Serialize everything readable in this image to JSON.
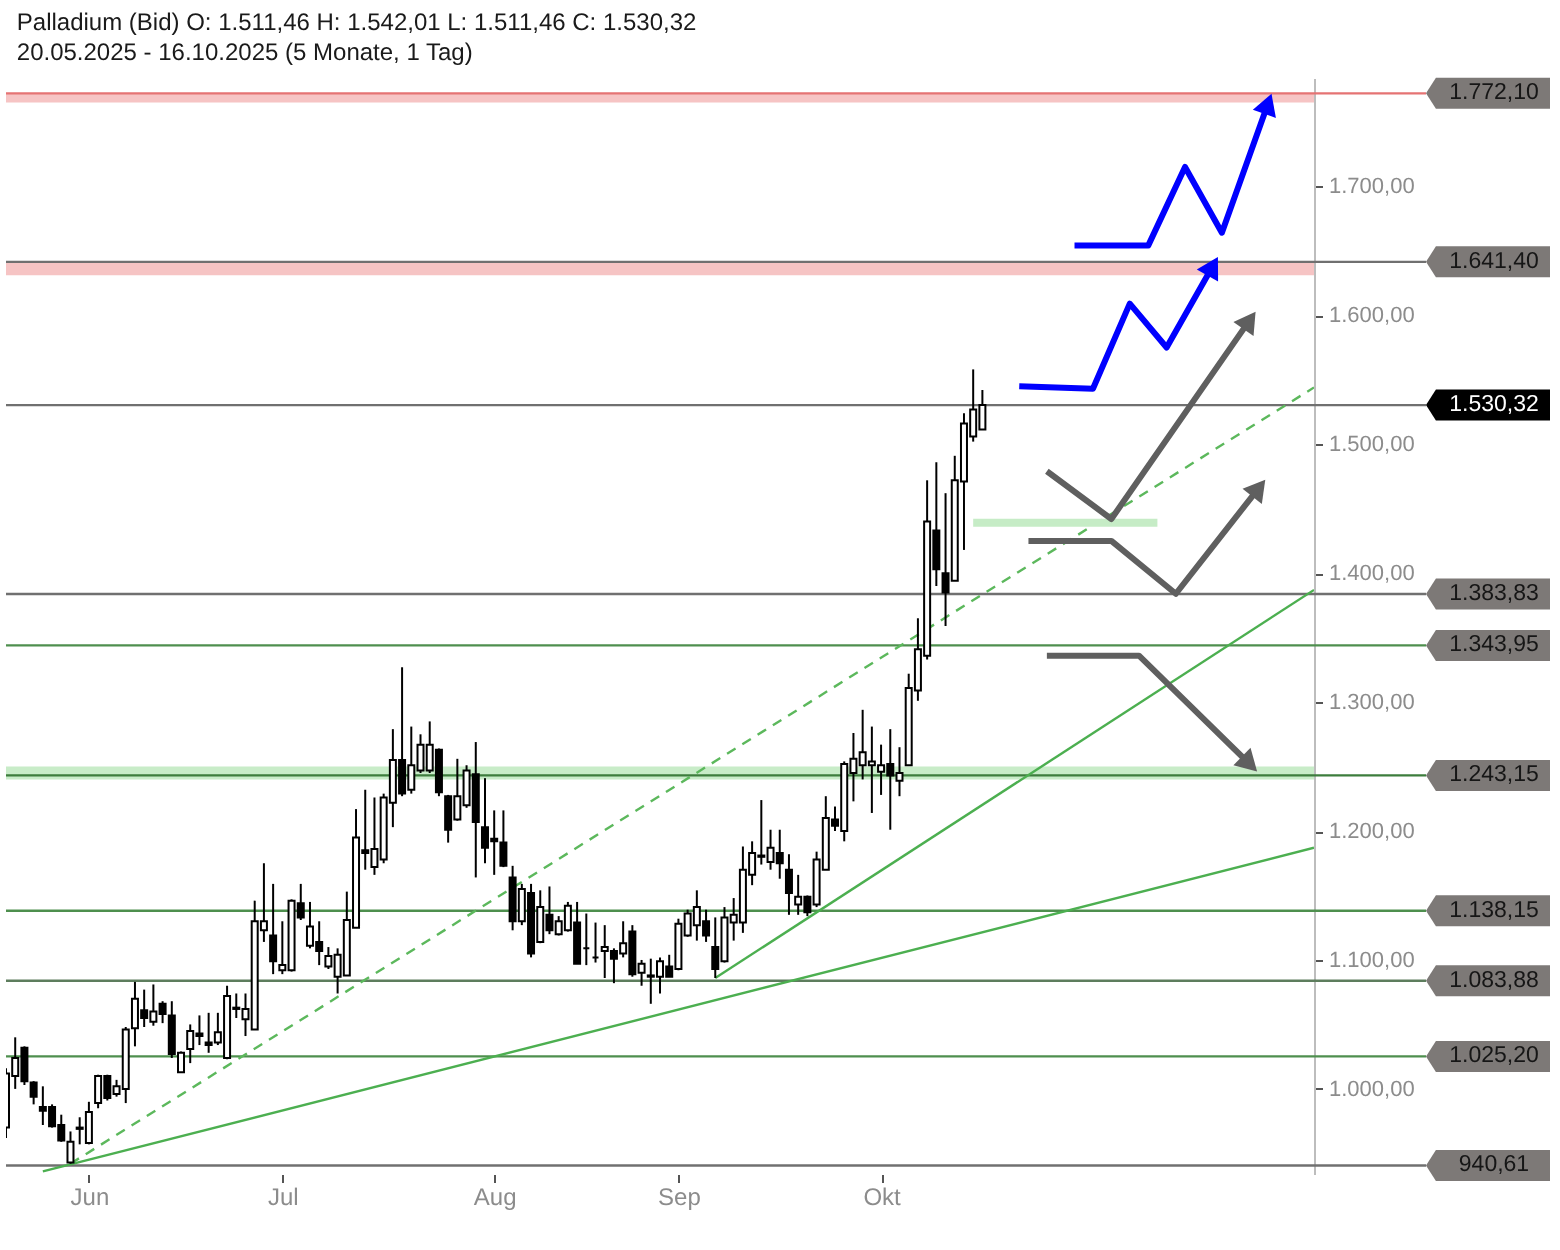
{
  "chart_data": {
    "type": "candlestick",
    "title": "Palladium (Bid) O: 1.511,46 H: 1.542,01 L: 1.511,46 C: 1.530,32",
    "subtitle": "20.05.2025 - 16.10.2025 (5 Monate, 1 Tag)",
    "categories": [
      null,
      null,
      null,
      null,
      null,
      null,
      null,
      null,
      null,
      "Jun",
      null,
      null,
      null,
      null,
      null,
      null,
      null,
      null,
      null,
      null,
      null,
      null,
      null,
      null,
      null,
      null,
      null,
      null,
      null,
      null,
      "Jul",
      null,
      null,
      null,
      null,
      null,
      null,
      null,
      null,
      null,
      null,
      null,
      null,
      null,
      null,
      null,
      null,
      null,
      null,
      null,
      null,
      null,
      null,
      "Aug",
      null,
      null,
      null,
      null,
      null,
      null,
      null,
      null,
      null,
      null,
      null,
      null,
      null,
      null,
      null,
      null,
      null,
      null,
      null,
      "Sep",
      null,
      null,
      null,
      null,
      null,
      null,
      null,
      null,
      null,
      null,
      null,
      null,
      null,
      null,
      null,
      null,
      null,
      null,
      null,
      null,
      null,
      "Okt",
      null,
      null,
      null,
      null,
      null,
      null,
      null,
      null,
      null,
      null,
      null,
      null,
      null,
      null,
      null,
      null,
      null,
      null,
      null,
      null,
      null,
      null,
      null,
      null,
      null,
      null,
      null,
      null,
      null,
      null,
      null,
      null,
      null,
      null,
      null,
      null,
      null,
      null,
      null,
      null,
      null,
      null,
      null,
      null,
      null,
      null,
      null
    ],
    "ohlc": [
      [
        970,
        1016,
        962,
        1012
      ],
      [
        1010,
        1040,
        1000,
        1024
      ],
      [
        1032,
        1033,
        1003,
        1006
      ],
      [
        1005,
        1006,
        988,
        994
      ],
      [
        986,
        1002,
        972,
        983
      ],
      [
        986,
        988,
        970,
        971
      ],
      [
        972,
        980,
        959,
        960
      ],
      [
        943,
        967,
        942,
        959
      ],
      [
        970,
        978,
        957,
        969
      ],
      [
        958,
        990,
        957,
        982
      ],
      [
        989,
        1011,
        985,
        1010
      ],
      [
        1010,
        1011,
        991,
        993
      ],
      [
        996,
        1007,
        994,
        1002
      ],
      [
        1000,
        1048,
        989,
        1046
      ],
      [
        1047,
        1083,
        1033,
        1070
      ],
      [
        1061,
        1077,
        1048,
        1055
      ],
      [
        1052,
        1081,
        1049,
        1060
      ],
      [
        1066,
        1068,
        1051,
        1058
      ],
      [
        1057,
        1068,
        1024,
        1027
      ],
      [
        1013,
        1029,
        1013,
        1028
      ],
      [
        1031,
        1050,
        1020,
        1045
      ],
      [
        1043,
        1057,
        1034,
        1041
      ],
      [
        1036,
        1059,
        1028,
        1034
      ],
      [
        1036,
        1059,
        1034,
        1044
      ],
      [
        1024,
        1080,
        1023,
        1072
      ],
      [
        1062,
        1074,
        1055,
        1063
      ],
      [
        1054,
        1074,
        1041,
        1062
      ],
      [
        1046,
        1146,
        1046,
        1130
      ],
      [
        1123,
        1175,
        1114,
        1130
      ],
      [
        1119,
        1159,
        1089,
        1099
      ],
      [
        1092,
        1130,
        1089,
        1096
      ],
      [
        1092,
        1147,
        1091,
        1146
      ],
      [
        1144,
        1159,
        1131,
        1133
      ],
      [
        1111,
        1145,
        1109,
        1126
      ],
      [
        1114,
        1130,
        1096,
        1107
      ],
      [
        1095,
        1110,
        1093,
        1103
      ],
      [
        1087,
        1109,
        1074,
        1104
      ],
      [
        1088,
        1153,
        1088,
        1131
      ],
      [
        1125,
        1217,
        1125,
        1195
      ],
      [
        1185,
        1232,
        1170,
        1183
      ],
      [
        1172,
        1226,
        1166,
        1186
      ],
      [
        1178,
        1229,
        1175,
        1226
      ],
      [
        1222,
        1279,
        1203,
        1255
      ],
      [
        1255,
        1327,
        1227,
        1229
      ],
      [
        1232,
        1281,
        1229,
        1251
      ],
      [
        1247,
        1275,
        1245,
        1267
      ],
      [
        1247,
        1285,
        1245,
        1267
      ],
      [
        1263,
        1264,
        1227,
        1230
      ],
      [
        1227,
        1228,
        1191,
        1201
      ],
      [
        1209,
        1256,
        1208,
        1227
      ],
      [
        1220,
        1251,
        1218,
        1247
      ],
      [
        1244,
        1269,
        1164,
        1207
      ],
      [
        1203,
        1241,
        1175,
        1187
      ],
      [
        1194,
        1216,
        1166,
        1192
      ],
      [
        1191,
        1216,
        1172,
        1173
      ],
      [
        1164,
        1173,
        1123,
        1130
      ],
      [
        1130,
        1159,
        1127,
        1155
      ],
      [
        1152,
        1159,
        1102,
        1105
      ],
      [
        1114,
        1154,
        1113,
        1141
      ],
      [
        1135,
        1157,
        1120,
        1123
      ],
      [
        1120,
        1134,
        1119,
        1130
      ],
      [
        1123,
        1145,
        1122,
        1142
      ],
      [
        1129,
        1145,
        1097,
        1097
      ],
      [
        1109,
        1136,
        1096,
        1109
      ],
      [
        1102,
        1129,
        1098,
        1102
      ],
      [
        1107,
        1127,
        1086,
        1110
      ],
      [
        1107,
        1109,
        1082,
        1101
      ],
      [
        1105,
        1130,
        1102,
        1113
      ],
      [
        1122,
        1127,
        1087,
        1089
      ],
      [
        1090,
        1100,
        1080,
        1097
      ],
      [
        1087,
        1101,
        1066,
        1088
      ],
      [
        1087,
        1102,
        1074,
        1099
      ],
      [
        1095,
        1104,
        1087,
        1087
      ],
      [
        1093,
        1132,
        1092,
        1128
      ],
      [
        1119,
        1139,
        1118,
        1136
      ],
      [
        1127,
        1154,
        1115,
        1141
      ],
      [
        1130,
        1139,
        1114,
        1119
      ],
      [
        1110,
        1133,
        1086,
        1093
      ],
      [
        1099,
        1141,
        1098,
        1133
      ],
      [
        1129,
        1148,
        1115,
        1135
      ],
      [
        1129,
        1188,
        1121,
        1170
      ],
      [
        1166,
        1192,
        1158,
        1183
      ],
      [
        1180,
        1224,
        1174,
        1181
      ],
      [
        1176,
        1201,
        1170,
        1187
      ],
      [
        1183,
        1201,
        1163,
        1175
      ],
      [
        1170,
        1182,
        1135,
        1152
      ],
      [
        1143,
        1166,
        1135,
        1149
      ],
      [
        1149,
        1150,
        1134,
        1137
      ],
      [
        1143,
        1184,
        1141,
        1178
      ],
      [
        1170,
        1227,
        1170,
        1210
      ],
      [
        1209,
        1219,
        1200,
        1204
      ],
      [
        1200,
        1254,
        1192,
        1252
      ],
      [
        1245,
        1276,
        1223,
        1256
      ],
      [
        1251,
        1294,
        1240,
        1261
      ],
      [
        1251,
        1281,
        1214,
        1254
      ],
      [
        1246,
        1267,
        1228,
        1251
      ],
      [
        1252,
        1279,
        1201,
        1243
      ],
      [
        1239,
        1265,
        1227,
        1245
      ],
      [
        1251,
        1322,
        1251,
        1311
      ],
      [
        1309,
        1365,
        1301,
        1341
      ],
      [
        1336,
        1472,
        1333,
        1440
      ],
      [
        1433,
        1486,
        1390,
        1403
      ],
      [
        1400,
        1462,
        1359,
        1385
      ],
      [
        1394,
        1491,
        1394,
        1472
      ],
      [
        1471,
        1524,
        1418,
        1516
      ],
      [
        1506,
        1558,
        1502,
        1527
      ],
      [
        1511.46,
        1542.01,
        1511.46,
        1530.32
      ],
      null,
      null,
      null,
      null,
      null,
      null,
      null,
      null,
      null,
      null,
      null,
      null,
      null,
      null,
      null,
      null,
      null,
      null,
      null,
      null,
      null,
      null,
      null,
      null,
      null,
      null,
      null,
      null,
      null,
      null,
      null,
      null,
      null,
      null,
      null,
      null
    ],
    "series": [
      {
        "type": "line",
        "color": "#5cb85c",
        "line_style": "dashed",
        "values": [
          null,
          null,
          null,
          null,
          null,
          null,
          null,
          942,
          null,
          null,
          null,
          null,
          null,
          null,
          null,
          null,
          null,
          null,
          null,
          null,
          null,
          null,
          null,
          null,
          null,
          null,
          null,
          null,
          null,
          null,
          null,
          null,
          null,
          null,
          null,
          null,
          null,
          null,
          null,
          null,
          null,
          null,
          null,
          null,
          null,
          null,
          null,
          null,
          null,
          null,
          null,
          null,
          null,
          null,
          null,
          null,
          null,
          null,
          null,
          null,
          null,
          null,
          null,
          null,
          null,
          null,
          null,
          null,
          null,
          null,
          null,
          null,
          null,
          null,
          null,
          null,
          null,
          null,
          null,
          null,
          null,
          null,
          null,
          null,
          null,
          null,
          null,
          null,
          null,
          null,
          null,
          null,
          null,
          null,
          null,
          null,
          null,
          null,
          null,
          null,
          null,
          null,
          null,
          null,
          null,
          null,
          null,
          null,
          null,
          null,
          null,
          null,
          null,
          null,
          null,
          null,
          null,
          null,
          null,
          null,
          null,
          null,
          null,
          null,
          null,
          null,
          null,
          null,
          null,
          null,
          null,
          null,
          null,
          null,
          null,
          null,
          null,
          null,
          null,
          null,
          null,
          null,
          1544
        ]
      },
      {
        "type": "line",
        "color": "#4caf50",
        "values": [
          null,
          null,
          null,
          null,
          936,
          null,
          null,
          null,
          null,
          null,
          null,
          null,
          null,
          null,
          null,
          null,
          null,
          null,
          null,
          null,
          null,
          null,
          null,
          null,
          null,
          null,
          null,
          null,
          null,
          null,
          null,
          null,
          null,
          null,
          null,
          null,
          null,
          null,
          null,
          null,
          null,
          null,
          null,
          null,
          null,
          null,
          null,
          null,
          null,
          null,
          null,
          null,
          null,
          null,
          null,
          null,
          null,
          null,
          null,
          null,
          null,
          null,
          null,
          null,
          null,
          null,
          null,
          null,
          null,
          null,
          null,
          null,
          null,
          null,
          null,
          null,
          null,
          null,
          null,
          null,
          null,
          null,
          null,
          null,
          null,
          null,
          null,
          null,
          null,
          null,
          null,
          null,
          null,
          null,
          null,
          null,
          null,
          null,
          null,
          null,
          null,
          null,
          null,
          null,
          null,
          null,
          null,
          null,
          null,
          null,
          null,
          null,
          null,
          null,
          null,
          null,
          null,
          null,
          null,
          null,
          null,
          null,
          null,
          null,
          null,
          null,
          null,
          null,
          null,
          null,
          null,
          null,
          null,
          null,
          null,
          null,
          null,
          null,
          null,
          null,
          null,
          null,
          1187
        ]
      },
      {
        "type": "line",
        "color": "#4caf50",
        "values": [
          null,
          null,
          null,
          null,
          null,
          null,
          null,
          null,
          null,
          null,
          null,
          null,
          null,
          null,
          null,
          null,
          null,
          null,
          null,
          null,
          null,
          null,
          null,
          null,
          null,
          null,
          null,
          null,
          null,
          null,
          null,
          null,
          null,
          null,
          null,
          null,
          null,
          null,
          null,
          null,
          null,
          null,
          null,
          null,
          null,
          null,
          null,
          null,
          null,
          null,
          null,
          null,
          null,
          null,
          null,
          null,
          null,
          null,
          null,
          null,
          null,
          null,
          null,
          null,
          null,
          null,
          null,
          null,
          null,
          null,
          null,
          null,
          null,
          null,
          null,
          null,
          null,
          1086,
          null,
          null,
          null,
          null,
          null,
          null,
          null,
          null,
          null,
          null,
          null,
          null,
          null,
          null,
          null,
          null,
          null,
          null,
          null,
          null,
          null,
          null,
          null,
          null,
          null,
          null,
          null,
          null,
          null,
          null,
          null,
          null,
          null,
          null,
          null,
          null,
          null,
          null,
          null,
          null,
          null,
          null,
          null,
          null,
          null,
          null,
          null,
          null,
          null,
          null,
          null,
          null,
          null,
          null,
          null,
          null,
          null,
          null,
          null,
          null,
          null,
          null,
          null,
          null,
          1387
        ]
      },
      {
        "type": "line",
        "color": "#c6ecc6",
        "values": [
          null,
          null,
          null,
          null,
          null,
          null,
          null,
          null,
          null,
          null,
          null,
          null,
          null,
          null,
          null,
          null,
          null,
          null,
          null,
          null,
          null,
          null,
          null,
          null,
          null,
          null,
          null,
          null,
          null,
          null,
          null,
          null,
          null,
          null,
          null,
          null,
          null,
          null,
          null,
          null,
          null,
          null,
          null,
          null,
          null,
          null,
          null,
          null,
          null,
          null,
          null,
          null,
          null,
          null,
          null,
          null,
          null,
          null,
          null,
          null,
          null,
          null,
          null,
          null,
          null,
          null,
          null,
          null,
          null,
          null,
          null,
          null,
          null,
          null,
          null,
          null,
          null,
          null,
          null,
          null,
          null,
          null,
          null,
          null,
          null,
          null,
          null,
          null,
          null,
          null,
          null,
          null,
          null,
          null,
          null,
          null,
          null,
          null,
          null,
          null,
          null,
          null,
          null,
          null,
          null,
          1439,
          null,
          null,
          null,
          null,
          null,
          null,
          null,
          null,
          null,
          null,
          null,
          null,
          null,
          null,
          null,
          null,
          null,
          null,
          null,
          1439,
          null,
          null,
          null,
          null,
          null,
          null,
          null,
          null,
          null,
          null,
          null,
          null,
          null,
          null,
          null,
          null,
          null
        ]
      },
      {
        "type": "line",
        "color": "#0000ff",
        "values": [
          null,
          null,
          null,
          null,
          null,
          null,
          null,
          null,
          null,
          null,
          null,
          null,
          null,
          null,
          null,
          null,
          null,
          null,
          null,
          null,
          null,
          null,
          null,
          null,
          null,
          null,
          null,
          null,
          null,
          null,
          null,
          null,
          null,
          null,
          null,
          null,
          null,
          null,
          null,
          null,
          null,
          null,
          null,
          null,
          null,
          null,
          null,
          null,
          null,
          null,
          null,
          null,
          null,
          null,
          null,
          null,
          null,
          null,
          null,
          null,
          null,
          null,
          null,
          null,
          null,
          null,
          null,
          null,
          null,
          null,
          null,
          null,
          null,
          null,
          null,
          null,
          null,
          null,
          null,
          null,
          null,
          null,
          null,
          null,
          null,
          null,
          null,
          null,
          null,
          null,
          null,
          null,
          null,
          null,
          null,
          null,
          null,
          null,
          null,
          null,
          null,
          null,
          null,
          null,
          null,
          null,
          null,
          null,
          null,
          null,
          1545,
          null,
          null,
          null,
          null,
          null,
          null,
          null,
          1543,
          null,
          null,
          null,
          1609,
          null,
          null,
          null,
          1575,
          null,
          null,
          null,
          null,
          1638,
          null,
          null,
          null,
          null,
          null,
          null,
          null,
          null,
          null,
          null,
          null
        ]
      },
      {
        "type": "line",
        "color": "#0000ff",
        "values": [
          null,
          null,
          null,
          null,
          null,
          null,
          null,
          null,
          null,
          null,
          null,
          null,
          null,
          null,
          null,
          null,
          null,
          null,
          null,
          null,
          null,
          null,
          null,
          null,
          null,
          null,
          null,
          null,
          null,
          null,
          null,
          null,
          null,
          null,
          null,
          null,
          null,
          null,
          null,
          null,
          null,
          null,
          null,
          null,
          null,
          null,
          null,
          null,
          null,
          null,
          null,
          null,
          null,
          null,
          null,
          null,
          null,
          null,
          null,
          null,
          null,
          null,
          null,
          null,
          null,
          null,
          null,
          null,
          null,
          null,
          null,
          null,
          null,
          null,
          null,
          null,
          null,
          null,
          null,
          null,
          null,
          null,
          null,
          null,
          null,
          null,
          null,
          null,
          null,
          null,
          null,
          null,
          null,
          null,
          null,
          null,
          null,
          null,
          null,
          null,
          null,
          null,
          null,
          null,
          null,
          null,
          null,
          null,
          null,
          null,
          null,
          null,
          null,
          null,
          null,
          null,
          1654,
          null,
          null,
          null,
          null,
          null,
          null,
          null,
          1654,
          null,
          null,
          null,
          1715,
          null,
          null,
          null,
          1664,
          null,
          null,
          null,
          null,
          1764,
          null,
          null,
          null,
          null,
          null
        ]
      },
      {
        "type": "line",
        "color": "#5f5f5f",
        "values": [
          null,
          null,
          null,
          null,
          null,
          null,
          null,
          null,
          null,
          null,
          null,
          null,
          null,
          null,
          null,
          null,
          null,
          null,
          null,
          null,
          null,
          null,
          null,
          null,
          null,
          null,
          null,
          null,
          null,
          null,
          null,
          null,
          null,
          null,
          null,
          null,
          null,
          null,
          null,
          null,
          null,
          null,
          null,
          null,
          null,
          null,
          null,
          null,
          null,
          null,
          null,
          null,
          null,
          null,
          null,
          null,
          null,
          null,
          null,
          null,
          null,
          null,
          null,
          null,
          null,
          null,
          null,
          null,
          null,
          null,
          null,
          null,
          null,
          null,
          null,
          null,
          null,
          null,
          null,
          null,
          null,
          null,
          null,
          null,
          null,
          null,
          null,
          null,
          null,
          null,
          null,
          null,
          null,
          null,
          null,
          null,
          null,
          null,
          null,
          null,
          null,
          null,
          null,
          null,
          null,
          null,
          null,
          null,
          null,
          null,
          null,
          null,
          null,
          1479,
          null,
          null,
          null,
          null,
          null,
          null,
          1442,
          null,
          null,
          null,
          null,
          null,
          null,
          null,
          null,
          null,
          null,
          null,
          null,
          null,
          null,
          1596,
          null,
          null,
          null,
          null,
          null,
          null,
          null
        ]
      },
      {
        "type": "line",
        "color": "#5f5f5f",
        "values": [
          null,
          null,
          null,
          null,
          null,
          null,
          null,
          null,
          null,
          null,
          null,
          null,
          null,
          null,
          null,
          null,
          null,
          null,
          null,
          null,
          null,
          null,
          null,
          null,
          null,
          null,
          null,
          null,
          null,
          null,
          null,
          null,
          null,
          null,
          null,
          null,
          null,
          null,
          null,
          null,
          null,
          null,
          null,
          null,
          null,
          null,
          null,
          null,
          null,
          null,
          null,
          null,
          null,
          null,
          null,
          null,
          null,
          null,
          null,
          null,
          null,
          null,
          null,
          null,
          null,
          null,
          null,
          null,
          null,
          null,
          null,
          null,
          null,
          null,
          null,
          null,
          null,
          null,
          null,
          null,
          null,
          null,
          null,
          null,
          null,
          null,
          null,
          null,
          null,
          null,
          null,
          null,
          null,
          null,
          null,
          null,
          null,
          null,
          null,
          null,
          null,
          null,
          null,
          null,
          null,
          null,
          null,
          null,
          null,
          null,
          null,
          1425,
          null,
          null,
          null,
          null,
          null,
          null,
          null,
          null,
          1425,
          null,
          null,
          null,
          null,
          null,
          null,
          1384,
          null,
          null,
          null,
          null,
          null,
          null,
          null,
          null,
          1466,
          null,
          null,
          null,
          null,
          null,
          null
        ]
      },
      {
        "type": "line",
        "color": "#5f5f5f",
        "values": [
          null,
          null,
          null,
          null,
          null,
          null,
          null,
          null,
          null,
          null,
          null,
          null,
          null,
          null,
          null,
          null,
          null,
          null,
          null,
          null,
          null,
          null,
          null,
          null,
          null,
          null,
          null,
          null,
          null,
          null,
          null,
          null,
          null,
          null,
          null,
          null,
          null,
          null,
          null,
          null,
          null,
          null,
          null,
          null,
          null,
          null,
          null,
          null,
          null,
          null,
          null,
          null,
          null,
          null,
          null,
          null,
          null,
          null,
          null,
          null,
          null,
          null,
          null,
          null,
          null,
          null,
          null,
          null,
          null,
          null,
          null,
          null,
          null,
          null,
          null,
          null,
          null,
          null,
          null,
          null,
          null,
          null,
          null,
          null,
          null,
          null,
          null,
          null,
          null,
          null,
          null,
          null,
          null,
          null,
          null,
          null,
          null,
          null,
          null,
          null,
          null,
          null,
          null,
          null,
          null,
          null,
          null,
          null,
          null,
          null,
          null,
          null,
          null,
          1336,
          null,
          null,
          null,
          null,
          null,
          null,
          null,
          null,
          null,
          1336,
          null,
          null,
          null,
          null,
          null,
          null,
          null,
          null,
          null,
          null,
          null,
          1252,
          null,
          null,
          null,
          null,
          null,
          null,
          null
        ]
      }
    ],
    "ylim": [
      934,
      1784
    ],
    "yticks": [
      {
        "value": 1000,
        "label": "1.000,00"
      },
      {
        "value": 1100,
        "label": "1.100,00"
      },
      {
        "value": 1200,
        "label": "1.200,00"
      },
      {
        "value": 1300,
        "label": "1.300,00"
      },
      {
        "value": 1400,
        "label": "1.400,00"
      },
      {
        "value": 1500,
        "label": "1.500,00"
      },
      {
        "value": 1600,
        "label": "1.600,00"
      },
      {
        "value": 1700,
        "label": "1.700,00"
      }
    ],
    "bands": [
      {
        "axis": "y",
        "from": 1765,
        "to": 1772,
        "color": "#f6c4c4"
      },
      {
        "axis": "y",
        "from": 1631,
        "to": 1641,
        "color": "#f6c4c4"
      },
      {
        "axis": "y",
        "from": 1240,
        "to": 1250,
        "color": "#c8ecc8"
      }
    ],
    "ref_lines": [
      {
        "axis": "y",
        "value": 1772.1,
        "label": "1.772,10",
        "color": "#e57373"
      },
      {
        "axis": "y",
        "value": 1641.4,
        "label": "1.641,40",
        "color": "#707070"
      },
      {
        "axis": "y",
        "value": 1530.32,
        "label": "1.530,32",
        "color": "#707070"
      },
      {
        "axis": "y",
        "value": 1383.83,
        "label": "1.383,83",
        "color": "#707070"
      },
      {
        "axis": "y",
        "value": 1343.95,
        "label": "1.343,95",
        "color": "#4e8f4e"
      },
      {
        "axis": "y",
        "value": 1243.15,
        "label": "1.243,15",
        "color": "#3d7d3d"
      },
      {
        "axis": "y",
        "value": 1138.15,
        "label": "1.138,15",
        "color": "#4e8f4e"
      },
      {
        "axis": "y",
        "value": 1083.88,
        "label": "1.083,88",
        "color": "#5d7d5d"
      },
      {
        "axis": "y",
        "value": 1025.2,
        "label": "1.025,20",
        "color": "#4e8f4e"
      },
      {
        "axis": "y",
        "value": 940.61,
        "label": "940,61",
        "color": "#707070"
      }
    ]
  }
}
